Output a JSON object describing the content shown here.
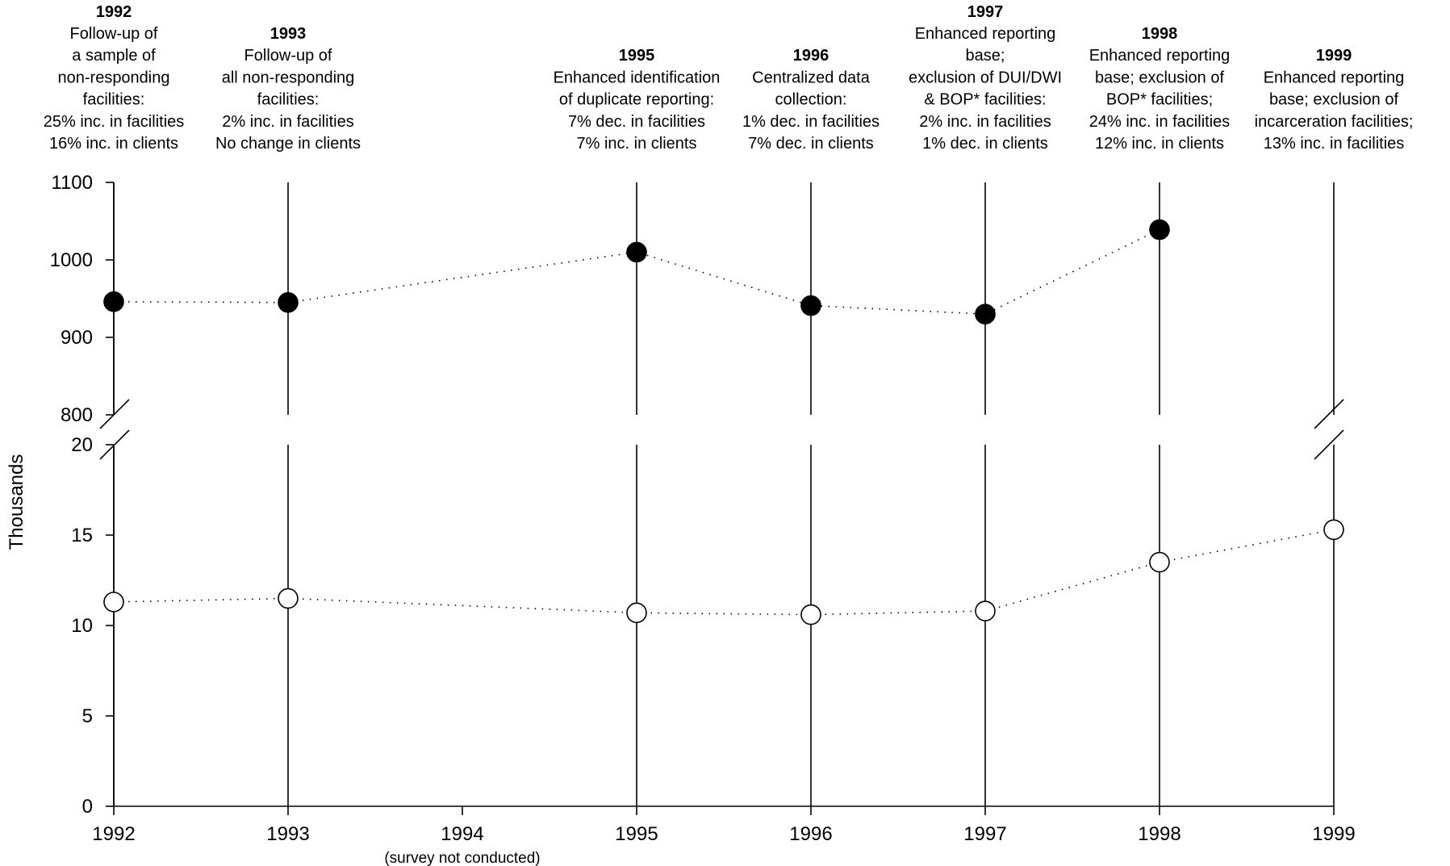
{
  "chart_data": {
    "type": "scatter",
    "ylabel": "Thousands",
    "x_categories": [
      "1992",
      "1993",
      "1994",
      "1995",
      "1996",
      "1997",
      "1998",
      "1999"
    ],
    "x_note": {
      "category": "1994",
      "text": "(survey not conducted)"
    },
    "upper_axis": {
      "ticks": [
        "1100",
        "1000",
        "900",
        "800"
      ],
      "range": [
        800,
        1100
      ]
    },
    "lower_axis": {
      "ticks": [
        "20",
        "15",
        "10",
        "5",
        "0"
      ],
      "range": [
        0,
        20
      ]
    },
    "series": [
      {
        "marker": "filled",
        "axis": "upper",
        "points": [
          {
            "x": "1992",
            "y": 946
          },
          {
            "x": "1993",
            "y": 945
          },
          {
            "x": "1995",
            "y": 1010
          },
          {
            "x": "1996",
            "y": 941
          },
          {
            "x": "1997",
            "y": 930
          },
          {
            "x": "1998",
            "y": 1039
          }
        ]
      },
      {
        "marker": "open",
        "axis": "lower",
        "points": [
          {
            "x": "1992",
            "y": 11.3
          },
          {
            "x": "1993",
            "y": 11.5
          },
          {
            "x": "1995",
            "y": 10.7
          },
          {
            "x": "1996",
            "y": 10.6
          },
          {
            "x": "1997",
            "y": 10.8
          },
          {
            "x": "1998",
            "y": 13.5
          },
          {
            "x": "1999",
            "y": 15.3
          }
        ]
      }
    ],
    "annotations": [
      {
        "x": "1992",
        "year": "1992",
        "lines": [
          "Follow-up of",
          "a sample of",
          "non-responding",
          "facilities:",
          "25% inc. in facilities",
          "16% inc. in clients"
        ]
      },
      {
        "x": "1993",
        "year": "1993",
        "lines": [
          "Follow-up of",
          "all non-responding",
          "facilities:",
          "2% inc. in facilities",
          "No change in clients"
        ]
      },
      {
        "x": "1995",
        "year": "1995",
        "lines": [
          "Enhanced identification",
          "of duplicate reporting:",
          "7% dec. in facilities",
          "7% inc. in clients"
        ]
      },
      {
        "x": "1996",
        "year": "1996",
        "lines": [
          "Centralized data",
          "collection:",
          "1% dec. in facilities",
          "7% dec. in clients"
        ]
      },
      {
        "x": "1997",
        "year": "1997",
        "lines": [
          "Enhanced reporting",
          "base;",
          "exclusion of DUI/DWI",
          "& BOP* facilities:",
          "2% inc. in facilities",
          "1% dec. in clients"
        ]
      },
      {
        "x": "1998",
        "year": "1998",
        "lines": [
          "Enhanced reporting",
          "base; exclusion of",
          "BOP* facilities;",
          "24% inc. in facilities",
          "12% inc. in clients"
        ]
      },
      {
        "x": "1999",
        "year": "1999",
        "lines": [
          "Enhanced reporting",
          "base; exclusion of",
          "incarceration facilities;",
          "13% inc. in facilities"
        ]
      }
    ]
  }
}
